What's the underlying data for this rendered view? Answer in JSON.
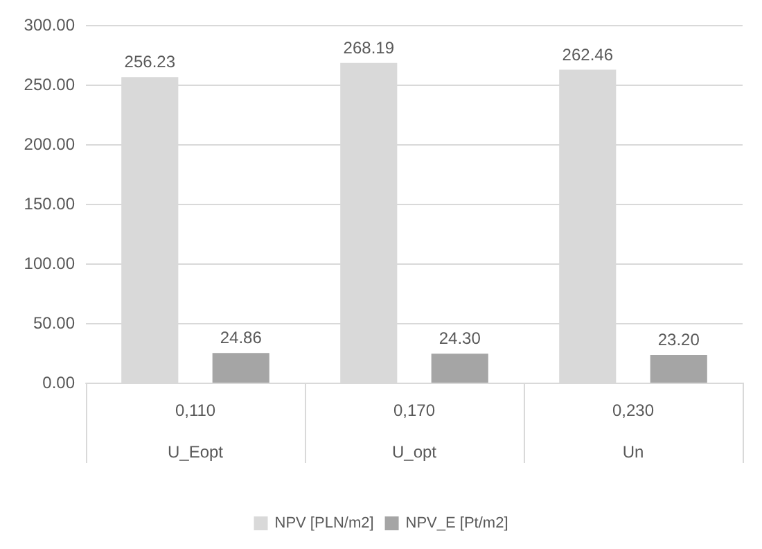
{
  "chart_data": {
    "type": "bar",
    "categories": [
      "0,110",
      "0,170",
      "0,230"
    ],
    "annotations": [
      "U_Eopt",
      "U_opt",
      "Un"
    ],
    "series": [
      {
        "name": "NPV [PLN/m2]",
        "color": "#d9d9d9",
        "values": [
          256.23,
          268.19,
          262.46
        ],
        "value_labels": [
          "256.23",
          "268.19",
          "262.46"
        ]
      },
      {
        "name": "NPV_E [Pt/m2]",
        "color": "#a5a5a5",
        "values": [
          24.86,
          24.3,
          23.2
        ],
        "value_labels": [
          "24.86",
          "24.30",
          "23.20"
        ]
      }
    ],
    "ylim": [
      0,
      300
    ],
    "yticks": [
      {
        "value": 0,
        "label": "0.00"
      },
      {
        "value": 50,
        "label": "50.00"
      },
      {
        "value": 100,
        "label": "100.00"
      },
      {
        "value": 150,
        "label": "150.00"
      },
      {
        "value": 200,
        "label": "200.00"
      },
      {
        "value": 250,
        "label": "250.00"
      },
      {
        "value": 300,
        "label": "300.00"
      }
    ],
    "grid": "y",
    "legend": "bottom"
  }
}
